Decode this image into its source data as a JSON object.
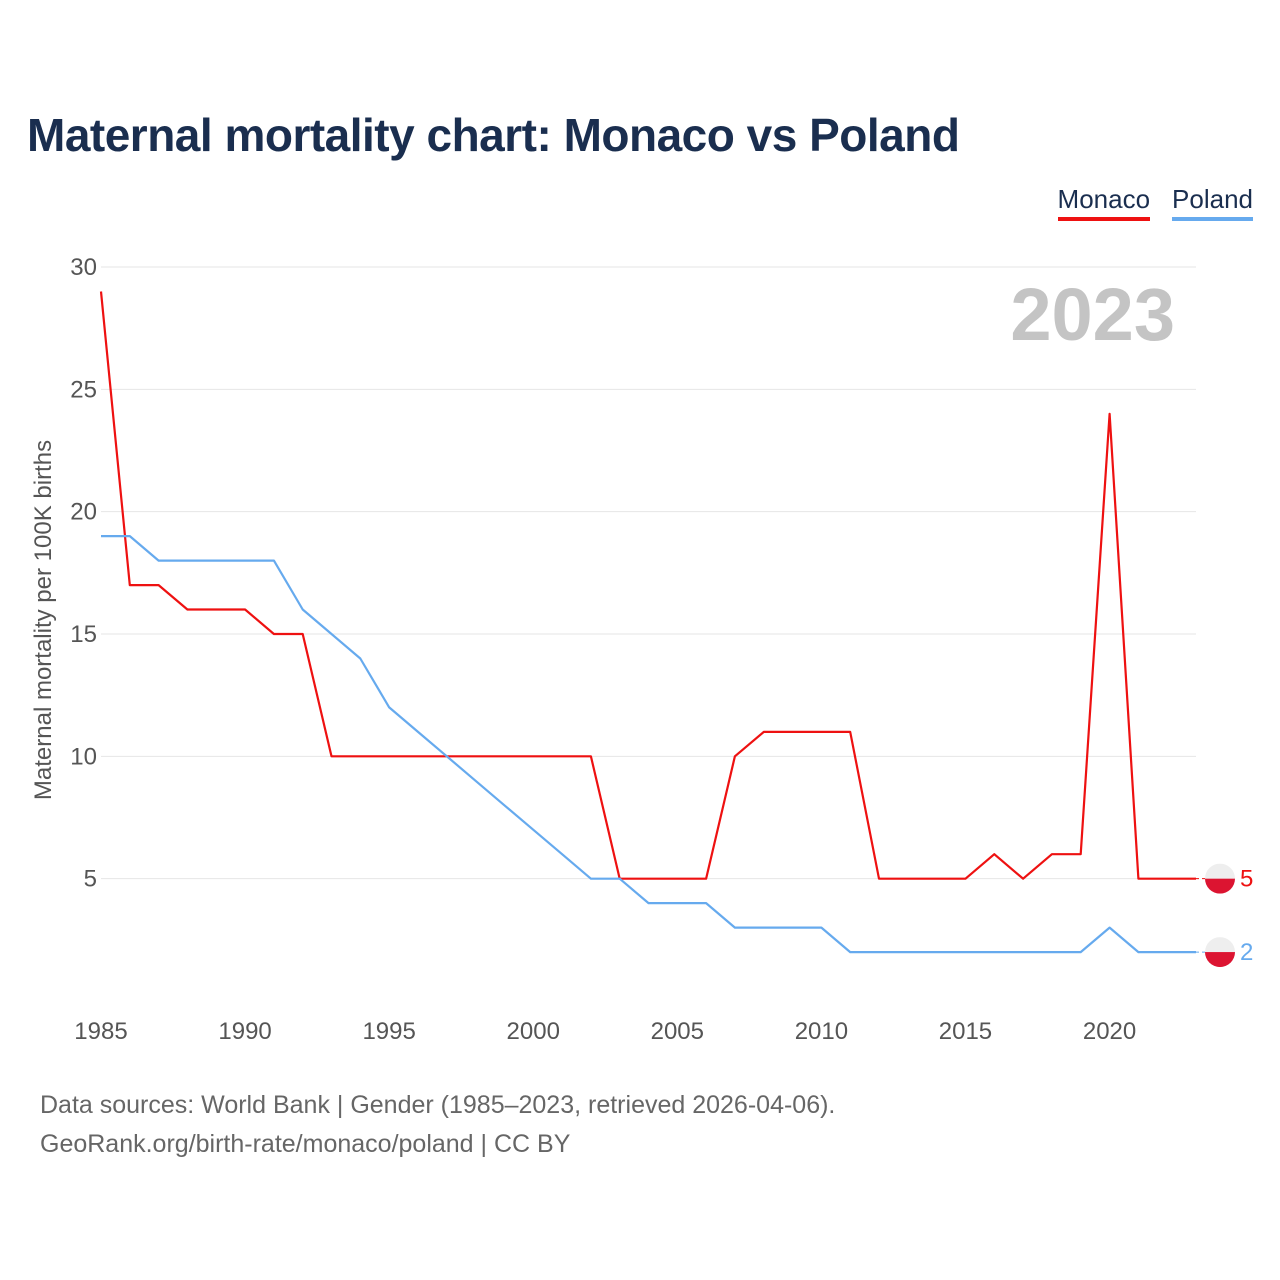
{
  "title": "Maternal mortality chart: Monaco vs Poland",
  "legend": {
    "monaco": "Monaco",
    "poland": "Poland"
  },
  "chart_data": {
    "type": "line",
    "title": "Maternal mortality chart: Monaco vs Poland",
    "ylabel": "Maternal mortality per 100K births",
    "xlabel": "",
    "year_label": "2023",
    "xlim": [
      1985,
      2023
    ],
    "ylim": [
      0,
      30
    ],
    "x_ticks": [
      1985,
      1990,
      1995,
      2000,
      2005,
      2010,
      2015,
      2020
    ],
    "y_ticks": [
      5,
      10,
      15,
      20,
      25,
      30
    ],
    "x": [
      1985,
      1986,
      1987,
      1988,
      1989,
      1990,
      1991,
      1992,
      1993,
      1994,
      1995,
      1996,
      1997,
      1998,
      1999,
      2000,
      2001,
      2002,
      2003,
      2004,
      2005,
      2006,
      2007,
      2008,
      2009,
      2010,
      2011,
      2012,
      2013,
      2014,
      2015,
      2016,
      2017,
      2018,
      2019,
      2020,
      2021,
      2022,
      2023
    ],
    "series": [
      {
        "name": "Monaco",
        "color": "#ee1111",
        "end_label": "5",
        "values": [
          29,
          17,
          17,
          16,
          16,
          16,
          15,
          15,
          10,
          10,
          10,
          10,
          10,
          10,
          10,
          10,
          10,
          10,
          5,
          5,
          5,
          5,
          10,
          11,
          11,
          11,
          11,
          5,
          5,
          5,
          5,
          6,
          5,
          6,
          6,
          24,
          5,
          5,
          5
        ]
      },
      {
        "name": "Poland",
        "color": "#66aaee",
        "end_label": "2",
        "values": [
          19,
          19,
          18,
          18,
          18,
          18,
          18,
          16,
          15,
          14,
          12,
          11,
          10,
          9,
          8,
          7,
          6,
          5,
          5,
          4,
          4,
          4,
          3,
          3,
          3,
          3,
          2,
          2,
          2,
          2,
          2,
          2,
          2,
          2,
          2,
          3,
          2,
          2,
          2
        ]
      }
    ]
  },
  "footer": {
    "line1": "Data sources: World Bank | Gender (1985–2023, retrieved 2026-04-06).",
    "line2": "GeoRank.org/birth-rate/monaco/poland | CC BY"
  }
}
